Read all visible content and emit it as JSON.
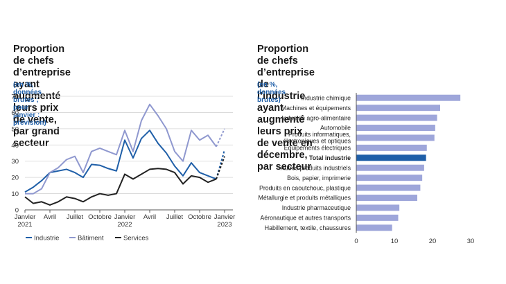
{
  "left": {
    "title_lines": [
      "Proportion de chefs d’entreprise",
      "ayant augmenté leurs prix de vente,",
      "par grand secteur"
    ],
    "subtitle": "(en %, données brutes ; pour janvier : prévision)"
  },
  "right": {
    "title_lines": [
      "Proportion de chefs d’entreprise de l’industrie",
      "ayant augmenté leurs prix de vente en décembre,",
      "par secteur"
    ],
    "subtitle": "(en %, données brutes)"
  },
  "colors": {
    "industrie": "#1f5fa8",
    "batiment": "#8f98cf",
    "services": "#222222",
    "bar": "#9ea6da",
    "bar_highlight": "#1f5fa8"
  },
  "chart_data": [
    {
      "type": "line",
      "ylim": [
        0,
        70
      ],
      "yticks": [
        0,
        10,
        20,
        30,
        40,
        50,
        60,
        70
      ],
      "xlim": [
        0,
        25
      ],
      "xticks": [
        {
          "pos": 0,
          "lines": [
            "Janvier",
            "2021"
          ]
        },
        {
          "pos": 3,
          "lines": [
            "Avril"
          ]
        },
        {
          "pos": 6,
          "lines": [
            "Juillet"
          ]
        },
        {
          "pos": 9,
          "lines": [
            "Octobre"
          ]
        },
        {
          "pos": 12,
          "lines": [
            "Janvier",
            "2022"
          ]
        },
        {
          "pos": 15,
          "lines": [
            "Avril"
          ]
        },
        {
          "pos": 18,
          "lines": [
            "Juillet"
          ]
        },
        {
          "pos": 21,
          "lines": [
            "Octobre"
          ]
        },
        {
          "pos": 24,
          "lines": [
            "Janvier",
            "2023"
          ]
        }
      ],
      "series": [
        {
          "name": "Industrie",
          "key": "industrie",
          "x": [
            0,
            1,
            2,
            3,
            4,
            5,
            6,
            7,
            8,
            9,
            10,
            11,
            12,
            13,
            14,
            15,
            16,
            17,
            18,
            19,
            20,
            21,
            22,
            23
          ],
          "values": [
            11,
            14,
            18,
            23,
            24,
            25,
            23,
            20,
            28,
            27.5,
            25.5,
            24,
            43,
            32,
            44,
            49,
            41,
            35,
            27,
            21,
            29,
            23,
            21,
            19
          ],
          "forecast": [
            19,
            37
          ]
        },
        {
          "name": "Bâtiment",
          "key": "batiment",
          "x": [
            0,
            1,
            2,
            3,
            4,
            5,
            6,
            7,
            8,
            9,
            10,
            11,
            12,
            13,
            14,
            15,
            16,
            17,
            18,
            19,
            20,
            21,
            22,
            23
          ],
          "values": [
            10,
            10,
            13,
            23,
            26,
            31,
            33,
            23,
            36,
            38,
            36,
            34,
            49,
            36,
            55,
            65,
            58,
            50,
            36,
            30,
            49,
            43,
            46,
            39
          ],
          "forecast": [
            39,
            50
          ]
        },
        {
          "name": "Services",
          "key": "services",
          "x": [
            0,
            1,
            2,
            3,
            4,
            5,
            6,
            7,
            8,
            9,
            10,
            11,
            12,
            13,
            14,
            15,
            16,
            17,
            18,
            19,
            20,
            21,
            22,
            23
          ],
          "values": [
            8,
            4,
            5,
            3,
            5,
            8,
            7,
            5,
            8,
            10,
            9,
            10,
            22,
            19,
            22,
            25,
            25.5,
            25,
            23,
            16,
            21,
            20,
            17,
            19
          ],
          "forecast": [
            19,
            33
          ]
        }
      ]
    },
    {
      "type": "bar",
      "orientation": "horizontal",
      "xlim": [
        0,
        30
      ],
      "xticks": [
        0,
        10,
        20,
        30
      ],
      "categories": [
        [
          "Industrie chimique"
        ],
        [
          "Machines et équipements"
        ],
        [
          "Industrie agro-alimentaire"
        ],
        [
          "Automobile"
        ],
        [
          "Produits informatiques,",
          "électroniques et optiques"
        ],
        [
          "Équipements électriques"
        ],
        [
          "Total industrie"
        ],
        [
          "Autres produits industriels"
        ],
        [
          "Bois, papier, imprimerie"
        ],
        [
          "Produits en caoutchouc, plastique"
        ],
        [
          "Métallurgie et produits métalliques"
        ],
        [
          "Industrie pharmaceutique"
        ],
        [
          "Aéronautique et autres transports"
        ],
        [
          "Habillement, textile, chaussures"
        ]
      ],
      "values": [
        27.3,
        22,
        21.2,
        20.7,
        20.5,
        18.5,
        18.3,
        17.8,
        17.3,
        16.8,
        16,
        11.3,
        11,
        9.4
      ],
      "highlight_index": 6
    }
  ]
}
